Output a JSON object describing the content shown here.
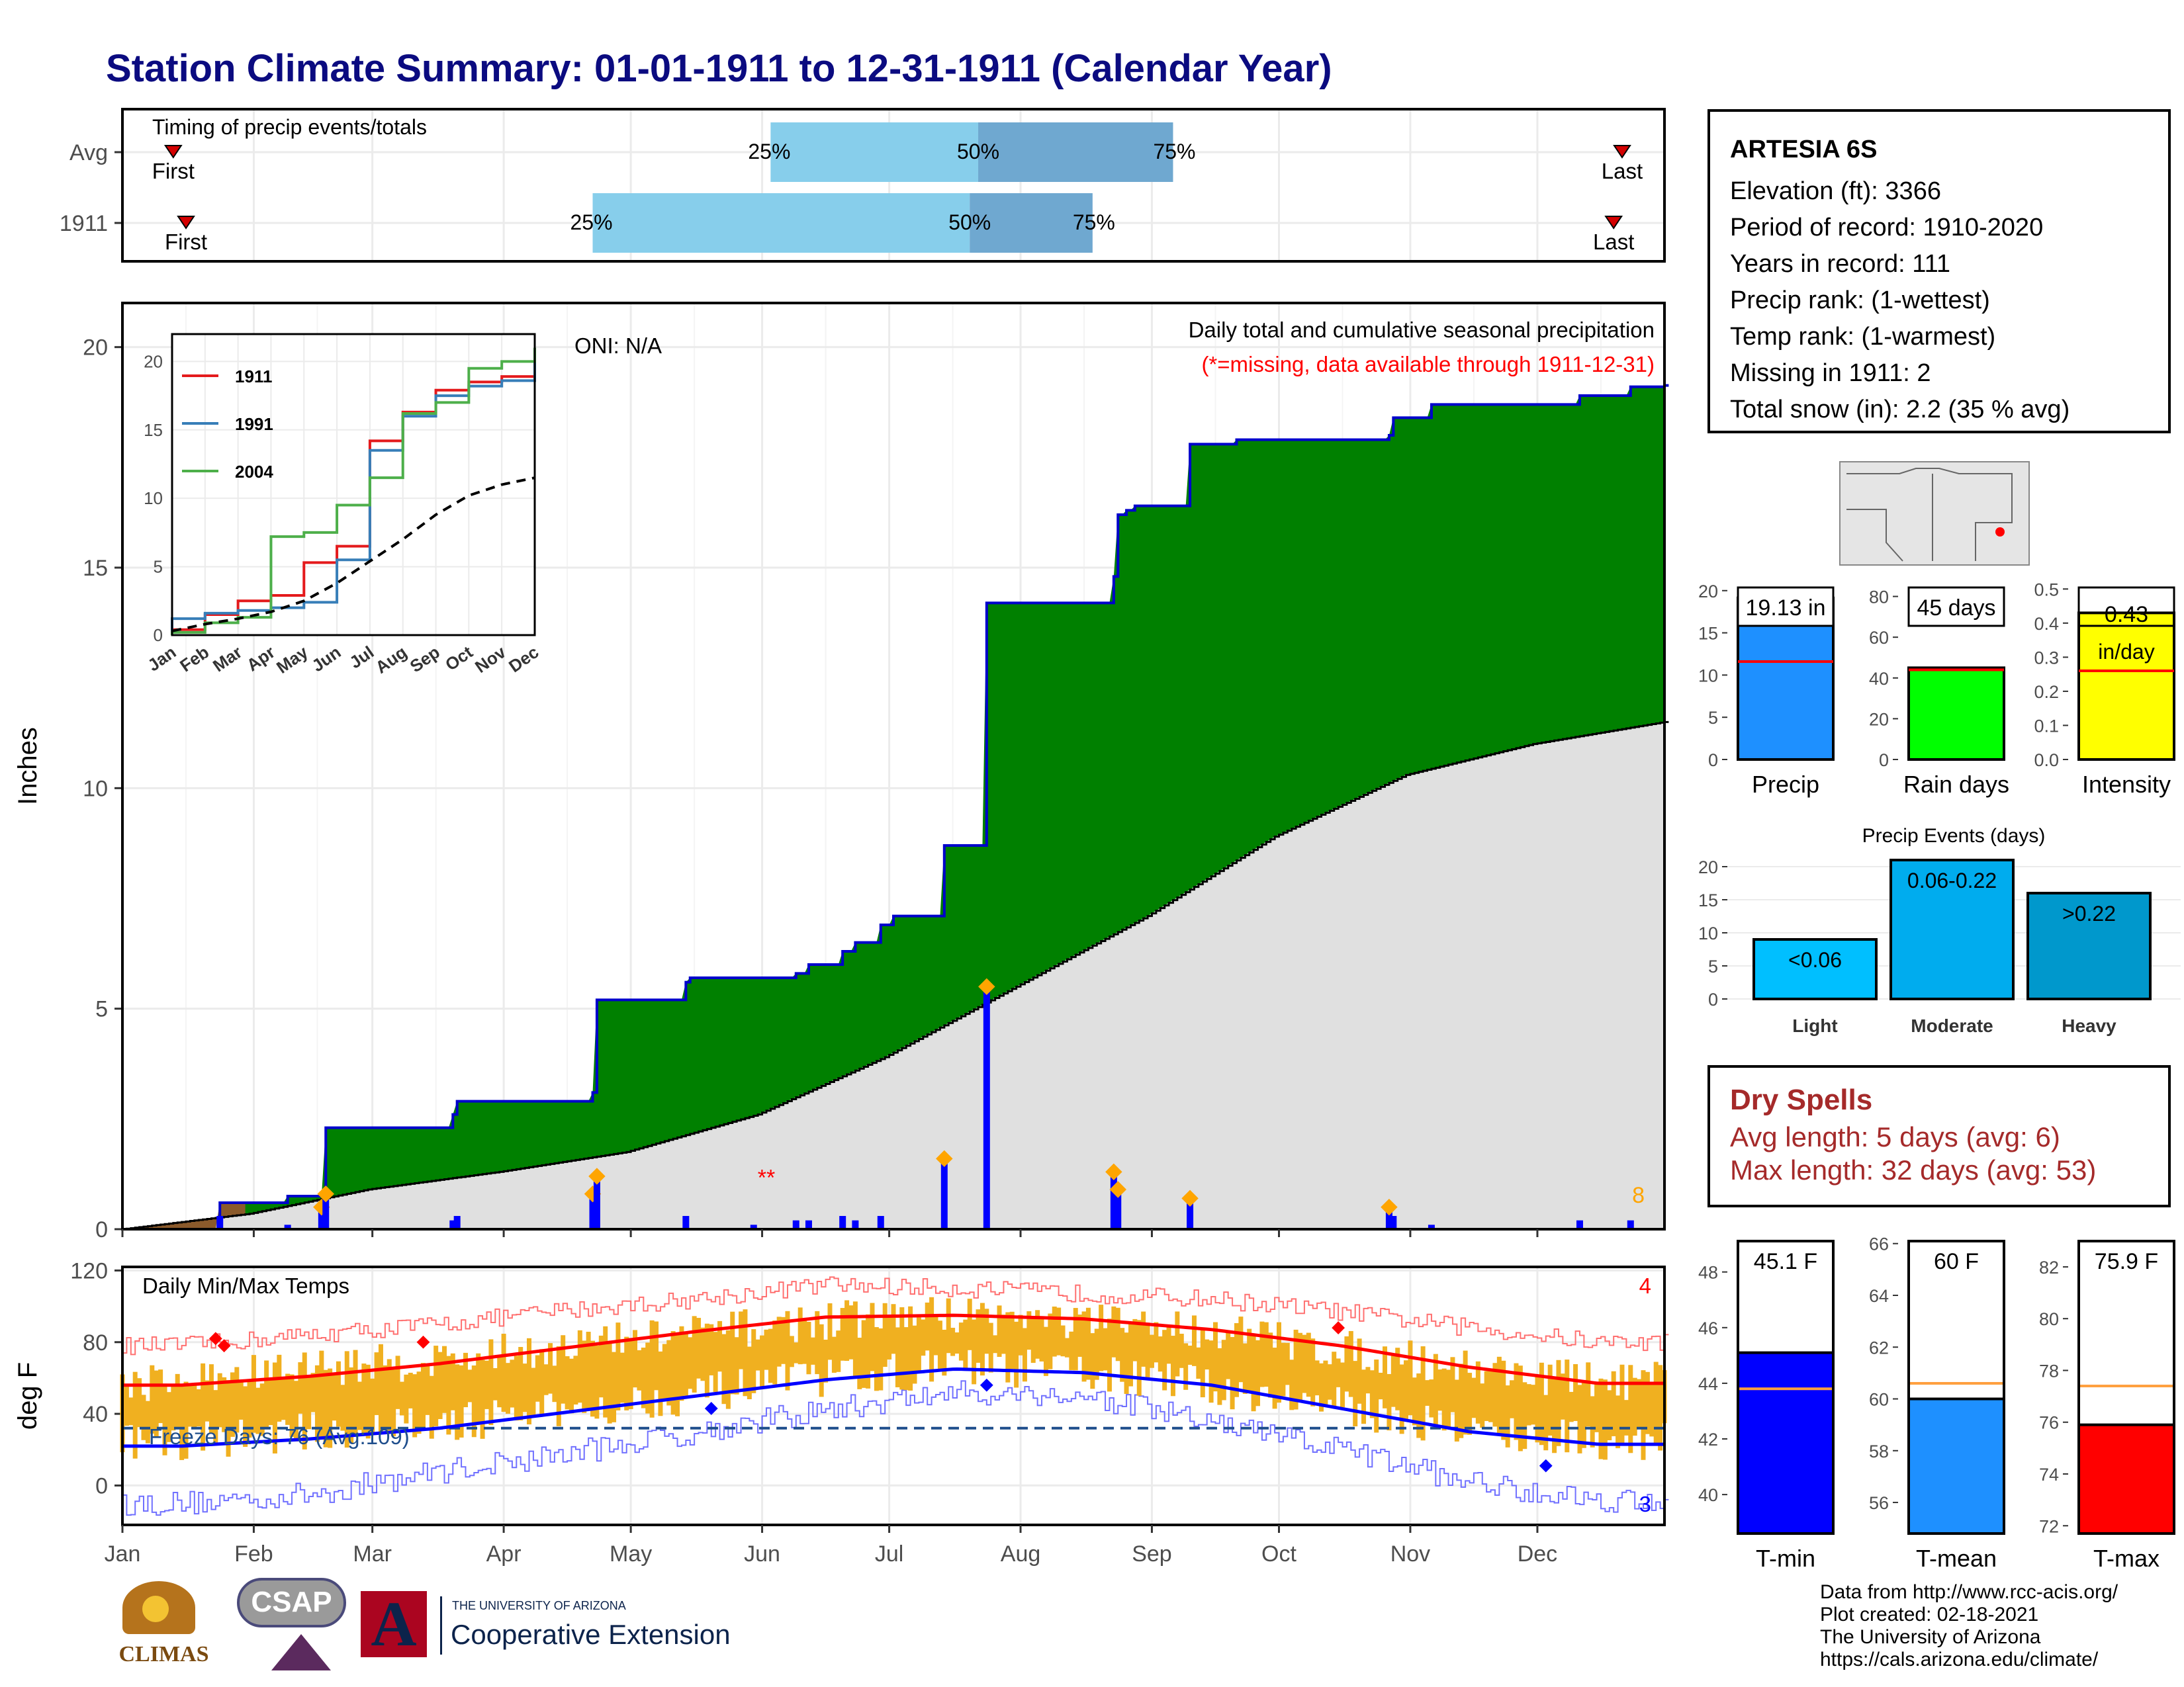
{
  "header": {
    "title": "Station Climate Summary: 01-01-1911 to 12-31-1911 (Calendar Year)"
  },
  "timing": {
    "label": "Timing of precip events/totals",
    "rows": [
      {
        "name": "Avg",
        "first": "First",
        "last": "Last",
        "p25": "25%",
        "p50": "50%",
        "p75": "75%",
        "first_doy": 13,
        "last_doy": 355,
        "p25_doy": 154,
        "p50_doy": 203,
        "p75_doy": 249
      },
      {
        "name": "1911",
        "first": "First",
        "last": "Last",
        "p25": "25%",
        "p50": "50%",
        "p75": "75%",
        "first_doy": 16,
        "last_doy": 353,
        "p25_doy": 112,
        "p50_doy": 201,
        "p75_doy": 230
      }
    ]
  },
  "info": {
    "station": "ARTESIA 6S",
    "elevation": "Elevation (ft): 3366",
    "period": "Period of record: 1910-2020",
    "years": "Years in record: 111",
    "precip_rank": "Precip rank:  (1-wettest)",
    "temp_rank": "Temp rank:  (1-warmest)",
    "missing": "Missing in 1911: 2",
    "snow": "Total snow (in): 2.2 (35 % avg)"
  },
  "precip_panel": {
    "oni": "ONI: N/A",
    "subtitle": "Daily total and cumulative seasonal precipitation",
    "missing_note": "(*=missing, data available through 1911-12-31)",
    "missing_marker": "**",
    "ylabel": "Inches",
    "corner_count": "8",
    "yticks": [
      "0",
      "5",
      "10",
      "15",
      "20"
    ]
  },
  "months": [
    "Jan",
    "Feb",
    "Mar",
    "Apr",
    "May",
    "Jun",
    "Jul",
    "Aug",
    "Sep",
    "Oct",
    "Nov",
    "Dec"
  ],
  "temp_panel": {
    "title": "Daily Min/Max Temps",
    "ylabel": "deg F",
    "freeze": "Freeze Days: 76 (Avg:109)",
    "count_high": "4",
    "count_low": "3",
    "yticks": [
      "0",
      "40",
      "80",
      "120"
    ]
  },
  "bars": {
    "precip": {
      "label": "Precip",
      "value_label": "19.13 in",
      "yticks": [
        "0",
        "5",
        "10",
        "15",
        "20"
      ]
    },
    "raindays": {
      "label": "Rain days",
      "value_label": "45 days",
      "yticks": [
        "0",
        "20",
        "40",
        "60",
        "80"
      ]
    },
    "intensity": {
      "label": "Intensity",
      "value_label": "0.43",
      "unit": "in/day",
      "yticks": [
        "0.0",
        "0.1",
        "0.2",
        "0.3",
        "0.4",
        "0.5"
      ]
    },
    "events": {
      "title": "Precip Events (days)",
      "yticks": [
        "0",
        "5",
        "10",
        "15",
        "20"
      ],
      "items": [
        {
          "cat": "Light",
          "label": "<0.06"
        },
        {
          "cat": "Moderate",
          "label": "0.06-0.22"
        },
        {
          "cat": "Heavy",
          "label": ">0.22"
        }
      ]
    },
    "tmin": {
      "label": "T-min",
      "value_label": "45.1 F",
      "yticks": [
        "40",
        "42",
        "44",
        "46",
        "48"
      ]
    },
    "tmean": {
      "label": "T-mean",
      "value_label": "60 F",
      "yticks": [
        "56",
        "58",
        "60",
        "62",
        "64",
        "66"
      ]
    },
    "tmax": {
      "label": "T-max",
      "value_label": "75.9 F",
      "yticks": [
        "72",
        "74",
        "76",
        "78",
        "80",
        "82"
      ]
    }
  },
  "dry_spells": {
    "title": "Dry Spells",
    "avg": "Avg length: 5 days (avg: 6)",
    "max": "Max length: 32 days (avg: 53)"
  },
  "footer": {
    "l1": "Data from http://www.rcc-acis.org/",
    "l2": "Plot created: 02-18-2021",
    "l3": "The University of Arizona",
    "l4": "https://cals.arizona.edu/climate/"
  },
  "logos": {
    "climas": "CLIMAS",
    "csap": "CSAP",
    "ua_small": "THE UNIVERSITY OF ARIZONA",
    "ua_big": "Cooperative Extension",
    "ua_mark": "A"
  },
  "colors": {
    "title": "#0b0b80",
    "green": "#008000",
    "grey": "#e0e0e0",
    "blue": "#0000ff",
    "red": "#ff0000",
    "gold": "#f0b020",
    "precip": "#1e90ff",
    "rain": "#00ff00",
    "intensity": "#ffff00",
    "light": "#00bfff",
    "moderate": "#00acee",
    "heavy": "#0098cc"
  },
  "chart_data": [
    {
      "type": "area",
      "title": "Daily total and cumulative seasonal precipitation",
      "ylabel": "Inches",
      "ylim": [
        0,
        21
      ],
      "x_unit": "day of year",
      "series": [
        {
          "name": "1911",
          "cumulative_steps": [
            [
              1,
              0
            ],
            [
              24,
              0.6
            ],
            [
              40,
              0.75
            ],
            [
              49,
              2.3
            ],
            [
              79,
              2.6
            ],
            [
              80,
              2.9
            ],
            [
              112,
              3.1
            ],
            [
              113,
              5.2
            ],
            [
              134,
              5.6
            ],
            [
              135,
              5.7
            ],
            [
              160,
              5.8
            ],
            [
              163,
              6.0
            ],
            [
              171,
              6.3
            ],
            [
              174,
              6.5
            ],
            [
              180,
              6.9
            ],
            [
              183,
              7.1
            ],
            [
              195,
              8.7
            ],
            [
              205,
              14.2
            ],
            [
              235,
              14.8
            ],
            [
              236,
              16.2
            ],
            [
              238,
              16.3
            ],
            [
              240,
              16.4
            ],
            [
              253,
              17.8
            ],
            [
              264,
              17.9
            ],
            [
              300,
              18.0
            ],
            [
              301,
              18.4
            ],
            [
              310,
              18.7
            ],
            [
              345,
              18.9
            ],
            [
              357,
              19.1
            ],
            [
              365,
              19.13
            ]
          ]
        },
        {
          "name": "normal",
          "cumulative": [
            [
              1,
              0
            ],
            [
              31,
              0.35
            ],
            [
              59,
              0.9
            ],
            [
              90,
              1.3
            ],
            [
              120,
              1.75
            ],
            [
              151,
              2.6
            ],
            [
              181,
              3.9
            ],
            [
              212,
              5.5
            ],
            [
              243,
              7.1
            ],
            [
              273,
              8.9
            ],
            [
              304,
              10.3
            ],
            [
              334,
              11.0
            ],
            [
              365,
              11.5
            ]
          ]
        }
      ],
      "daily": [
        [
          24,
          0.3
        ],
        [
          40,
          0.1
        ],
        [
          48,
          0.5
        ],
        [
          49,
          0.8
        ],
        [
          79,
          0.2
        ],
        [
          80,
          0.3
        ],
        [
          112,
          0.8
        ],
        [
          113,
          1.2
        ],
        [
          134,
          0.3
        ],
        [
          150,
          0.1
        ],
        [
          160,
          0.2
        ],
        [
          163,
          0.2
        ],
        [
          171,
          0.3
        ],
        [
          174,
          0.2
        ],
        [
          180,
          0.3
        ],
        [
          195,
          1.6
        ],
        [
          205,
          5.5
        ],
        [
          235,
          1.3
        ],
        [
          236,
          0.9
        ],
        [
          253,
          0.7
        ],
        [
          300,
          0.5
        ],
        [
          301,
          0.3
        ],
        [
          310,
          0.1
        ],
        [
          345,
          0.2
        ],
        [
          357,
          0.2
        ]
      ]
    },
    {
      "type": "line",
      "title": "",
      "xlabel": "",
      "ylabel": "",
      "ylim": [
        0,
        22
      ],
      "categories": [
        "Jan",
        "Feb",
        "Mar",
        "Apr",
        "May",
        "Jun",
        "Jul",
        "Aug",
        "Sep",
        "Oct",
        "Nov",
        "Dec"
      ],
      "series": [
        {
          "name": "1911",
          "values": [
            0.4,
            1.5,
            2.5,
            2.9,
            5.3,
            6.5,
            14.2,
            16.3,
            17.9,
            18.5,
            18.9,
            19.13
          ]
        },
        {
          "name": "1991",
          "values": [
            1.2,
            1.6,
            1.8,
            2.0,
            2.4,
            5.5,
            13.5,
            16.0,
            17.5,
            18.2,
            18.6,
            20.0
          ]
        },
        {
          "name": "2004",
          "values": [
            0.2,
            0.9,
            1.3,
            7.2,
            7.5,
            9.5,
            11.5,
            16.2,
            17.0,
            19.5,
            20.0,
            21.0
          ]
        },
        {
          "values": [
            0.3,
            0.8,
            1.2,
            1.7,
            2.5,
            3.8,
            5.4,
            7.0,
            8.8,
            10.2,
            11.0,
            11.5
          ]
        }
      ]
    },
    {
      "type": "line",
      "title": "Daily Min/Max Temps",
      "ylabel": "deg F",
      "ylim": [
        -22,
        122
      ],
      "freeze_line": 32,
      "series": [
        {
          "name": "avg max",
          "monthly": [
            56,
            61,
            68,
            77,
            86,
            94,
            95,
            93,
            87,
            78,
            66,
            57
          ]
        },
        {
          "name": "avg min",
          "monthly": [
            22,
            26,
            32,
            41,
            50,
            59,
            65,
            63,
            56,
            43,
            30,
            23
          ]
        },
        {
          "name": "record max",
          "monthly": [
            78,
            84,
            90,
            98,
            104,
            112,
            110,
            107,
            104,
            97,
            88,
            80
          ]
        },
        {
          "name": "record min",
          "monthly": [
            -10,
            -5,
            8,
            18,
            30,
            42,
            52,
            50,
            35,
            20,
            2,
            -8
          ]
        },
        {
          "name": "1911 max",
          "monthly": [
            58,
            66,
            70,
            78,
            85,
            92,
            96,
            91,
            87,
            76,
            66,
            58
          ]
        },
        {
          "name": "1911 min",
          "monthly": [
            25,
            30,
            34,
            42,
            51,
            60,
            66,
            64,
            55,
            44,
            31,
            25
          ]
        }
      ]
    },
    {
      "type": "bar",
      "title": "Precip Events (days)",
      "categories": [
        "Light",
        "Moderate",
        "Heavy"
      ],
      "values": [
        9,
        21,
        16
      ],
      "ylim": [
        0,
        21
      ]
    },
    {
      "type": "bar",
      "categories": [
        "Precip",
        "Rain days",
        "Intensity",
        "T-min",
        "T-mean",
        "T-max"
      ],
      "values": [
        19.13,
        45,
        0.43,
        45.1,
        60,
        75.9
      ],
      "averages": [
        11.6,
        44,
        0.26,
        43.8,
        60.6,
        77.4
      ]
    }
  ]
}
